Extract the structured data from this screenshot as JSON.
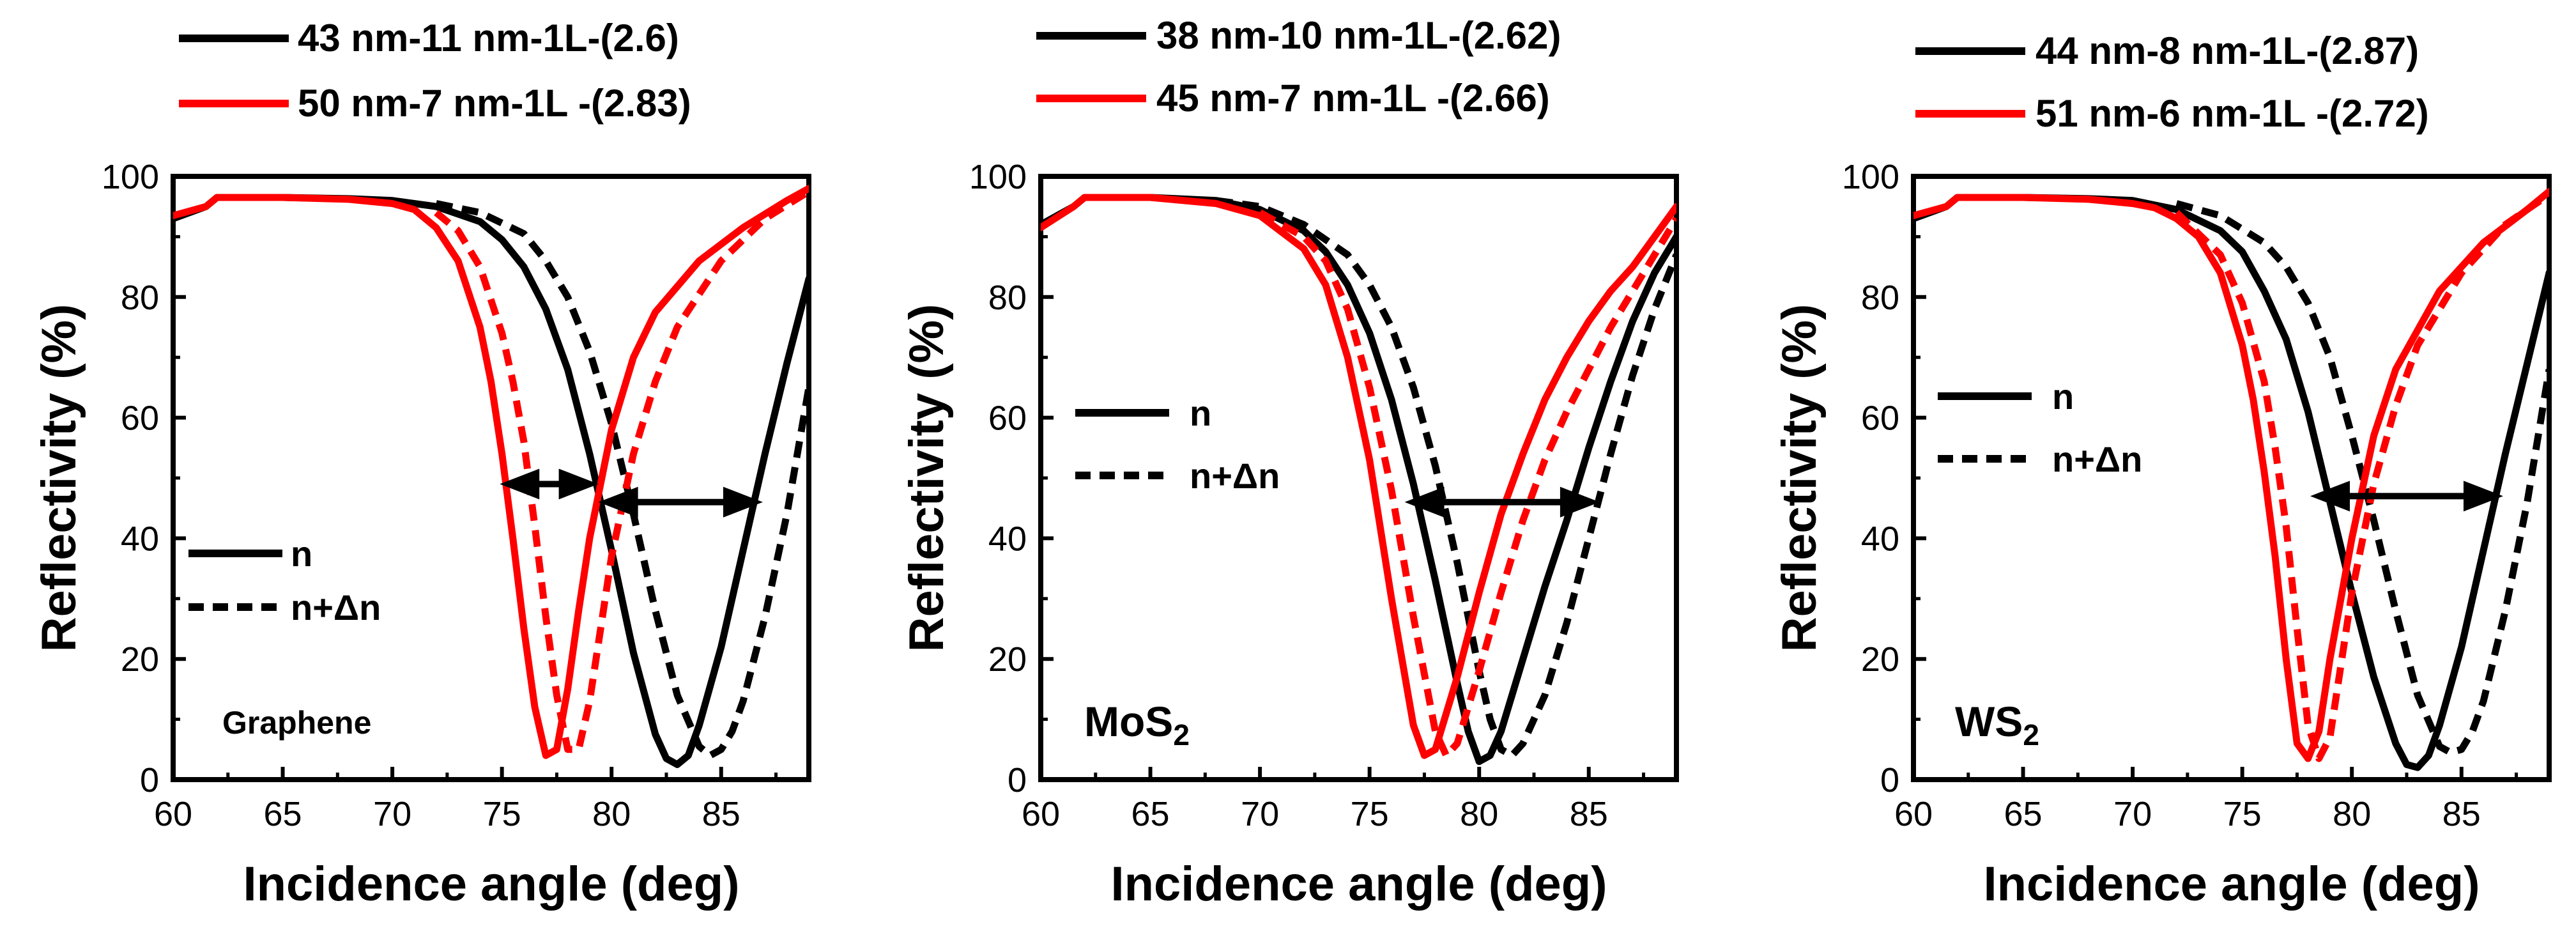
{
  "colors": {
    "black": "#000000",
    "red": "#ff0000"
  },
  "line_styles": {
    "n": "solid",
    "n_plus_dn": "dashed"
  },
  "chart_data": [
    {
      "type": "line",
      "panel": "graphene",
      "material": "Graphene",
      "material_base": "Graphene",
      "material_sub": "",
      "xlabel": "Incidence angle (deg)",
      "ylabel": "Reflectivity (%)",
      "xlim": [
        60,
        89
      ],
      "ylim": [
        0,
        100
      ],
      "xticks": [
        60,
        65,
        70,
        75,
        80,
        85
      ],
      "yticks": [
        0,
        20,
        40,
        60,
        80,
        100
      ],
      "legend_top": [
        {
          "label": "43 nm-11 nm-1L-(2.6)",
          "color": "black"
        },
        {
          "label": "50 nm-7 nm-1L -(2.83)",
          "color": "red"
        }
      ],
      "legend_style": [
        {
          "label": "n",
          "style": "solid"
        },
        {
          "label": "n+Δn",
          "style": "dashed"
        }
      ],
      "legend_style_placement": "left-middle",
      "arrows": [
        {
          "from": 74.9,
          "to": 79.4,
          "y": 49
        },
        {
          "from": 79.4,
          "to": 86.9,
          "y": 46
        }
      ],
      "series": [
        {
          "name": "43 nm-11 nm-1L n",
          "color": "black",
          "style": "solid",
          "x": [
            60,
            61.5,
            62,
            65,
            68,
            70,
            72,
            74,
            75,
            76,
            77,
            78,
            79,
            80,
            81,
            82,
            82.5,
            83,
            83.5,
            84,
            85,
            86,
            87,
            88,
            89
          ],
          "y": [
            93,
            95,
            96.5,
            96.5,
            96.3,
            96,
            95,
            92.5,
            89.5,
            85,
            78,
            68,
            54,
            38,
            21,
            7.5,
            3.5,
            2.5,
            4,
            9,
            22,
            38,
            54,
            69,
            83
          ]
        },
        {
          "name": "43 nm-11 nm-1L n+Δn",
          "color": "black",
          "style": "dashed",
          "x": [
            72,
            74,
            76,
            77,
            78,
            79,
            80,
            81,
            82,
            83,
            84,
            84.5,
            85,
            85.5,
            86,
            87,
            88,
            89
          ],
          "y": [
            95.5,
            94,
            90.5,
            86,
            80,
            71,
            59,
            44,
            28,
            14,
            5.5,
            4,
            5,
            8,
            13,
            27,
            44,
            65
          ]
        },
        {
          "name": "50 nm-7 nm-1L n",
          "color": "red",
          "style": "solid",
          "x": [
            60,
            61.5,
            62,
            65,
            68,
            70,
            71,
            72,
            73,
            74,
            74.5,
            75,
            75.5,
            76,
            76.5,
            77,
            77.5,
            78,
            78.5,
            79,
            80,
            81,
            82,
            84,
            86,
            88,
            89
          ],
          "y": [
            93.5,
            95,
            96.5,
            96.5,
            96.2,
            95.5,
            94.5,
            91.5,
            86,
            75,
            66,
            54,
            40,
            25,
            12,
            4,
            5,
            15,
            28,
            40,
            58,
            70,
            77.5,
            86,
            91.5,
            96,
            98
          ]
        },
        {
          "name": "50 nm-7 nm-1L n+Δn",
          "color": "red",
          "style": "dashed",
          "x": [
            72,
            73,
            74,
            75,
            75.5,
            76,
            76.5,
            77,
            77.5,
            78,
            78.5,
            79,
            79.5,
            80,
            81,
            82,
            83,
            85,
            87,
            89
          ],
          "y": [
            94,
            91,
            85,
            74,
            66,
            56,
            42,
            27,
            14,
            5,
            5,
            13,
            25,
            37,
            54,
            66,
            75,
            86,
            93,
            97.5
          ]
        }
      ]
    },
    {
      "type": "line",
      "panel": "mos2",
      "material": "MoS2",
      "material_base": "MoS",
      "material_sub": "2",
      "xlabel": "Incidence angle (deg)",
      "ylabel": "Reflectivity (%)",
      "xlim": [
        60,
        89
      ],
      "ylim": [
        0,
        100
      ],
      "xticks": [
        60,
        65,
        70,
        75,
        80,
        85
      ],
      "yticks": [
        0,
        20,
        40,
        60,
        80,
        100
      ],
      "legend_top": [
        {
          "label": "38 nm-10 nm-1L-(2.62)",
          "color": "black"
        },
        {
          "label": "45 nm-7 nm-1L -(2.66)",
          "color": "red"
        }
      ],
      "legend_style": [
        {
          "label": "n",
          "style": "solid"
        },
        {
          "label": "n+Δn",
          "style": "dashed"
        }
      ],
      "legend_style_placement": "left-middle",
      "arrows": [
        {
          "from": 76.6,
          "to": 85.5,
          "y": 46
        }
      ],
      "series": [
        {
          "name": "38 nm-10 nm-1L n",
          "color": "black",
          "style": "solid",
          "x": [
            60,
            61.5,
            62,
            65,
            68,
            70,
            72,
            73,
            74,
            75,
            76,
            77,
            78,
            79,
            79.5,
            80,
            80.5,
            81,
            82,
            83,
            84,
            85,
            86,
            87,
            88,
            89
          ],
          "y": [
            92,
            95,
            96.5,
            96.5,
            96,
            94.5,
            91,
            87.5,
            82,
            74,
            63,
            49,
            33,
            16,
            8,
            3,
            4,
            8,
            20,
            32,
            43,
            55,
            66,
            76,
            84,
            90
          ]
        },
        {
          "name": "38 nm-10 nm-1L n+Δn",
          "color": "black",
          "style": "dashed",
          "x": [
            68,
            70,
            72,
            74,
            75,
            76,
            77,
            78,
            79,
            80,
            80.5,
            81,
            81.5,
            82,
            83,
            84,
            85,
            86,
            87,
            88,
            89
          ],
          "y": [
            96,
            95,
            92,
            87,
            82,
            75,
            65,
            52,
            36,
            18,
            10,
            5,
            4,
            6,
            14,
            26,
            40,
            54,
            67,
            78,
            87
          ]
        },
        {
          "name": "45 nm-7 nm-1L n",
          "color": "red",
          "style": "solid",
          "x": [
            60,
            61.5,
            62,
            65,
            68,
            70,
            72,
            73,
            74,
            75,
            76,
            77,
            77.5,
            78,
            79,
            80,
            81,
            82,
            83,
            84,
            85,
            86,
            87,
            88,
            89
          ],
          "y": [
            91.5,
            95,
            96.5,
            96.5,
            95.5,
            93.5,
            88,
            82,
            70,
            53,
            30,
            9,
            4,
            5,
            17,
            31,
            44,
            54,
            63,
            70,
            76,
            81,
            85,
            90,
            95
          ]
        },
        {
          "name": "45 nm-7 nm-1L n+Δn",
          "color": "red",
          "style": "dashed",
          "x": [
            70,
            72,
            73,
            74,
            75,
            76,
            77,
            78,
            78.5,
            79,
            80,
            81,
            82,
            83,
            84,
            85,
            86,
            87,
            88,
            89
          ],
          "y": [
            94,
            90,
            86,
            78,
            65,
            48,
            27,
            8,
            4,
            6,
            18,
            31,
            43,
            53,
            61,
            68,
            75,
            81,
            87,
            93
          ]
        }
      ]
    },
    {
      "type": "line",
      "panel": "ws2",
      "material": "WS2",
      "material_base": "WS",
      "material_sub": "2",
      "xlabel": "Incidence angle (deg)",
      "ylabel": "Reflectivity (%)",
      "xlim": [
        60,
        89
      ],
      "ylim": [
        0,
        100
      ],
      "xticks": [
        60,
        65,
        70,
        75,
        80,
        85
      ],
      "yticks": [
        0,
        20,
        40,
        60,
        80,
        100
      ],
      "legend_top": [
        {
          "label": "44 nm-8 nm-1L-(2.87)",
          "color": "black"
        },
        {
          "label": "51 nm-6 nm-1L -(2.72)",
          "color": "red"
        }
      ],
      "legend_style": [
        {
          "label": "n",
          "style": "solid"
        },
        {
          "label": "n+Δn",
          "style": "dashed"
        }
      ],
      "legend_style_placement": "left-middle",
      "arrows": [
        {
          "from": 78.1,
          "to": 86.9,
          "y": 47
        }
      ],
      "series": [
        {
          "name": "44 nm-8 nm-1L n",
          "color": "black",
          "style": "solid",
          "x": [
            60,
            61.5,
            62,
            65,
            68,
            70,
            72,
            74,
            75,
            76,
            77,
            78,
            79,
            80,
            81,
            82,
            82.5,
            83,
            83.5,
            84,
            85,
            86,
            87,
            88,
            89
          ],
          "y": [
            93,
            95,
            96.5,
            96.5,
            96.3,
            96,
            94.5,
            91,
            87.5,
            81,
            73,
            61,
            46,
            31,
            17,
            6,
            2.5,
            2,
            4,
            9,
            22,
            38,
            54,
            69,
            84
          ]
        },
        {
          "name": "44 nm-8 nm-1L n+Δn",
          "color": "black",
          "style": "dashed",
          "x": [
            72,
            74,
            76,
            77,
            78,
            79,
            80,
            81,
            82,
            83,
            84,
            84.5,
            85,
            85.5,
            86,
            87,
            88,
            89
          ],
          "y": [
            95.5,
            93.5,
            89,
            85,
            79,
            70,
            57,
            43,
            28,
            14,
            5.5,
            4.5,
            5,
            8,
            13,
            28,
            46,
            68
          ]
        },
        {
          "name": "51 nm-6 nm-1L n",
          "color": "red",
          "style": "solid",
          "x": [
            60,
            61.5,
            62,
            65,
            68,
            70,
            71,
            72,
            73,
            74,
            75,
            75.5,
            76,
            76.5,
            77,
            77.5,
            78,
            78.5,
            79,
            80,
            81,
            82,
            84,
            86,
            88,
            89
          ],
          "y": [
            93.5,
            95,
            96.5,
            96.5,
            96.2,
            95.5,
            94.8,
            93,
            90,
            84,
            72,
            63,
            51,
            37,
            20,
            6,
            3.5,
            8,
            20,
            40,
            57,
            68,
            81,
            89,
            94.5,
            97.5
          ]
        },
        {
          "name": "51 nm-6 nm-1L n+Δn",
          "color": "red",
          "style": "dashed",
          "x": [
            72,
            74,
            75,
            76,
            76.5,
            77,
            77.5,
            78,
            78.5,
            79,
            79.5,
            80,
            81,
            82,
            83,
            85,
            87,
            89
          ],
          "y": [
            94,
            87,
            79,
            66,
            55,
            42,
            25,
            9,
            3.5,
            7,
            19,
            31,
            49,
            62,
            72,
            84,
            92,
            97
          ]
        }
      ]
    }
  ]
}
